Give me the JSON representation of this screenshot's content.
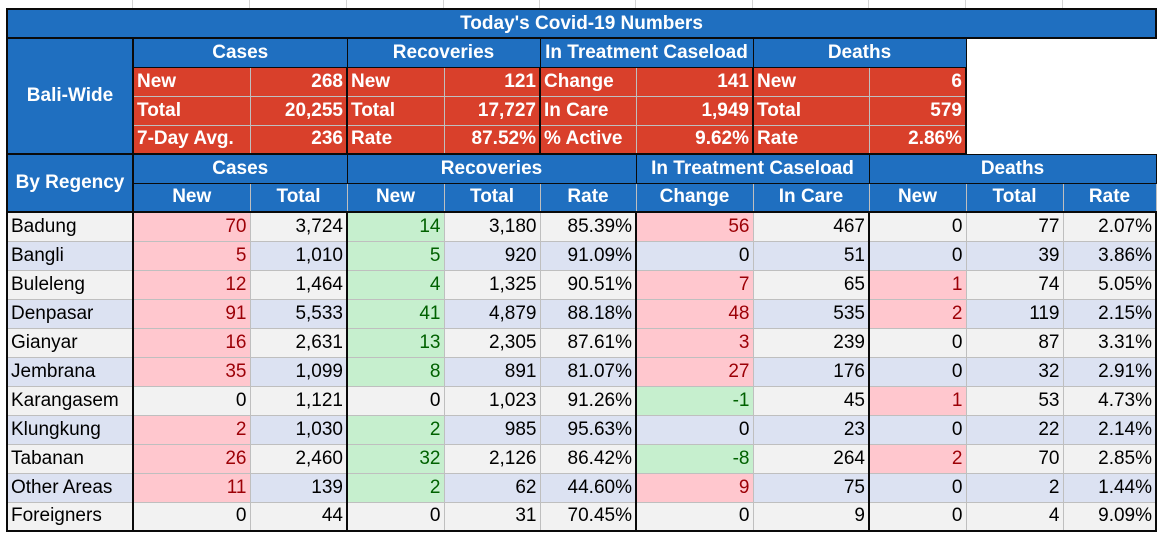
{
  "title": "Today's Covid-19 Numbers",
  "colors": {
    "header_blue": "#1f6fc0",
    "summary_red": "#d9402b",
    "pink": "#ffc7ce",
    "green": "#c6efce"
  },
  "bali_wide": {
    "label": "Bali-Wide",
    "groups": [
      "Cases",
      "Recoveries",
      "In Treatment Caseload",
      "Deaths"
    ],
    "rows": [
      [
        [
          "New",
          "268"
        ],
        [
          "New",
          "121"
        ],
        [
          "Change",
          "141"
        ],
        [
          "New",
          "6"
        ]
      ],
      [
        [
          "Total",
          "20,255"
        ],
        [
          "Total",
          "17,727"
        ],
        [
          "In Care",
          "1,949"
        ],
        [
          "Total",
          "579"
        ]
      ],
      [
        [
          "7-Day Avg.",
          "236"
        ],
        [
          "Rate",
          "87.52%"
        ],
        [
          "% Active",
          "9.62%"
        ],
        [
          "Rate",
          "2.86%"
        ]
      ]
    ]
  },
  "by_regency": {
    "label": "By Regency",
    "groups": [
      "Cases",
      "Recoveries",
      "In Treatment Caseload",
      "Deaths"
    ],
    "columns": [
      "New",
      "Total",
      "New",
      "Total",
      "Rate",
      "Change",
      "In Care",
      "New",
      "Total",
      "Rate"
    ],
    "rows": [
      {
        "name": "Badung",
        "v": [
          "70",
          "3,724",
          "14",
          "3,180",
          "85.39%",
          "56",
          "467",
          "0",
          "77",
          "2.07%"
        ]
      },
      {
        "name": "Bangli",
        "v": [
          "5",
          "1,010",
          "5",
          "920",
          "91.09%",
          "0",
          "51",
          "0",
          "39",
          "3.86%"
        ]
      },
      {
        "name": "Buleleng",
        "v": [
          "12",
          "1,464",
          "4",
          "1,325",
          "90.51%",
          "7",
          "65",
          "1",
          "74",
          "5.05%"
        ]
      },
      {
        "name": "Denpasar",
        "v": [
          "91",
          "5,533",
          "41",
          "4,879",
          "88.18%",
          "48",
          "535",
          "2",
          "119",
          "2.15%"
        ]
      },
      {
        "name": "Gianyar",
        "v": [
          "16",
          "2,631",
          "13",
          "2,305",
          "87.61%",
          "3",
          "239",
          "0",
          "87",
          "3.31%"
        ]
      },
      {
        "name": "Jembrana",
        "v": [
          "35",
          "1,099",
          "8",
          "891",
          "81.07%",
          "27",
          "176",
          "0",
          "32",
          "2.91%"
        ]
      },
      {
        "name": "Karangasem",
        "v": [
          "0",
          "1,121",
          "0",
          "1,023",
          "91.26%",
          "-1",
          "45",
          "1",
          "53",
          "4.73%"
        ]
      },
      {
        "name": "Klungkung",
        "v": [
          "2",
          "1,030",
          "2",
          "985",
          "95.63%",
          "0",
          "23",
          "0",
          "22",
          "2.14%"
        ]
      },
      {
        "name": "Tabanan",
        "v": [
          "26",
          "2,460",
          "32",
          "2,126",
          "86.42%",
          "-8",
          "264",
          "2",
          "70",
          "2.85%"
        ]
      },
      {
        "name": "Other Areas",
        "v": [
          "11",
          "139",
          "2",
          "62",
          "44.60%",
          "9",
          "75",
          "0",
          "2",
          "1.44%"
        ]
      },
      {
        "name": "Foreigners",
        "v": [
          "0",
          "44",
          "0",
          "31",
          "70.45%",
          "0",
          "9",
          "0",
          "4",
          "9.09%"
        ]
      }
    ]
  }
}
